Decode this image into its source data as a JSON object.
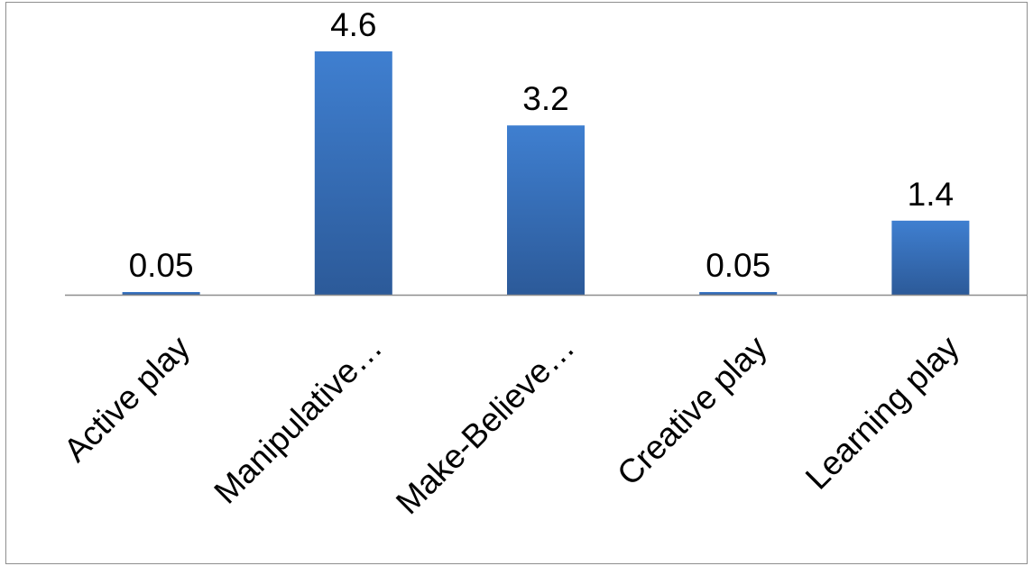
{
  "chart_data": {
    "type": "bar",
    "categories": [
      "Active play",
      "Manipulative…",
      "Make-Believe…",
      "Creative play",
      "Learning play"
    ],
    "values": [
      0.05,
      4.6,
      3.2,
      0.05,
      1.4
    ],
    "data_labels": [
      "0.05",
      "4.6",
      "3.2",
      "0.05",
      "1.4"
    ],
    "title": "",
    "xlabel": "",
    "ylabel": "",
    "ylim": [
      0,
      4.6
    ],
    "grid": false,
    "legend": "none",
    "bar_color": "#3a73c0",
    "bar_color_top": "#3f7fd0",
    "bar_color_bottom": "#2c5a99",
    "axis_color": "#8e8e8e"
  }
}
